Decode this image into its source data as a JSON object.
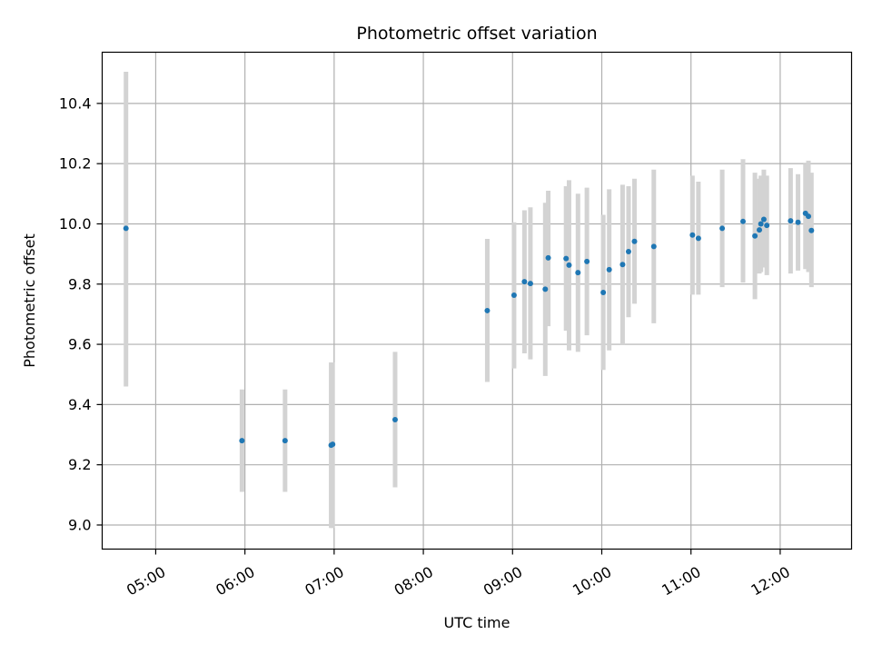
{
  "chart_data": {
    "type": "scatter",
    "title": "Photometric offset variation",
    "xlabel": "UTC time",
    "ylabel": "Photometric offset",
    "x_unit": "UTC time of day (HH:MM)",
    "xlim": [
      "04:24",
      "12:48"
    ],
    "ylim": [
      8.92,
      10.57
    ],
    "x_ticks": [
      "05:00",
      "06:00",
      "07:00",
      "08:00",
      "09:00",
      "10:00",
      "11:00",
      "12:00"
    ],
    "y_ticks": [
      9.0,
      9.2,
      9.4,
      9.6,
      9.8,
      10.0,
      10.2,
      10.4
    ],
    "y_tick_labels": [
      "9.0",
      "9.2",
      "9.4",
      "9.6",
      "9.8",
      "10.0",
      "10.2",
      "10.4"
    ],
    "grid": true,
    "marker_color": "#1f77b4",
    "errorbar_color": "#d3d3d3",
    "points": [
      {
        "x": "04:40",
        "y": 9.985,
        "lo": 9.46,
        "hi": 10.505
      },
      {
        "x": "05:58",
        "y": 9.28,
        "lo": 9.11,
        "hi": 9.45
      },
      {
        "x": "06:27",
        "y": 9.28,
        "lo": 9.11,
        "hi": 9.45
      },
      {
        "x": "06:58",
        "y": 9.265,
        "lo": 8.99,
        "hi": 9.54
      },
      {
        "x": "06:59",
        "y": 9.268,
        "lo": 8.99,
        "hi": 9.54
      },
      {
        "x": "07:41",
        "y": 9.35,
        "lo": 9.125,
        "hi": 9.575
      },
      {
        "x": "08:43",
        "y": 9.712,
        "lo": 9.475,
        "hi": 9.95
      },
      {
        "x": "09:01",
        "y": 9.763,
        "lo": 9.52,
        "hi": 10.005
      },
      {
        "x": "09:08",
        "y": 9.808,
        "lo": 9.57,
        "hi": 10.045
      },
      {
        "x": "09:12",
        "y": 9.802,
        "lo": 9.55,
        "hi": 10.055
      },
      {
        "x": "09:22",
        "y": 9.783,
        "lo": 9.495,
        "hi": 10.07
      },
      {
        "x": "09:24",
        "y": 9.887,
        "lo": 9.66,
        "hi": 10.11
      },
      {
        "x": "09:36",
        "y": 9.885,
        "lo": 9.645,
        "hi": 10.125
      },
      {
        "x": "09:38",
        "y": 9.863,
        "lo": 9.58,
        "hi": 10.145
      },
      {
        "x": "09:44",
        "y": 9.838,
        "lo": 9.575,
        "hi": 10.1
      },
      {
        "x": "09:50",
        "y": 9.875,
        "lo": 9.63,
        "hi": 10.12
      },
      {
        "x": "10:01",
        "y": 9.772,
        "lo": 9.515,
        "hi": 10.03
      },
      {
        "x": "10:05",
        "y": 9.848,
        "lo": 9.58,
        "hi": 10.115
      },
      {
        "x": "10:14",
        "y": 9.865,
        "lo": 9.6,
        "hi": 10.13
      },
      {
        "x": "10:18",
        "y": 9.908,
        "lo": 9.69,
        "hi": 10.125
      },
      {
        "x": "10:22",
        "y": 9.942,
        "lo": 9.735,
        "hi": 10.15
      },
      {
        "x": "10:35",
        "y": 9.925,
        "lo": 9.67,
        "hi": 10.18
      },
      {
        "x": "11:01",
        "y": 9.963,
        "lo": 9.765,
        "hi": 10.16
      },
      {
        "x": "11:05",
        "y": 9.952,
        "lo": 9.765,
        "hi": 10.14
      },
      {
        "x": "11:21",
        "y": 9.985,
        "lo": 9.79,
        "hi": 10.18
      },
      {
        "x": "11:35",
        "y": 10.008,
        "lo": 9.805,
        "hi": 10.215
      },
      {
        "x": "11:43",
        "y": 9.96,
        "lo": 9.75,
        "hi": 10.17
      },
      {
        "x": "11:46",
        "y": 9.98,
        "lo": 9.835,
        "hi": 10.15
      },
      {
        "x": "11:47",
        "y": 10.0,
        "lo": 9.84,
        "hi": 10.16
      },
      {
        "x": "11:49",
        "y": 10.015,
        "lo": 9.855,
        "hi": 10.18
      },
      {
        "x": "11:51",
        "y": 9.995,
        "lo": 9.83,
        "hi": 10.16
      },
      {
        "x": "12:07",
        "y": 10.01,
        "lo": 9.835,
        "hi": 10.185
      },
      {
        "x": "12:12",
        "y": 10.005,
        "lo": 9.845,
        "hi": 10.165
      },
      {
        "x": "12:17",
        "y": 10.035,
        "lo": 9.85,
        "hi": 10.2
      },
      {
        "x": "12:19",
        "y": 10.025,
        "lo": 9.84,
        "hi": 10.21
      },
      {
        "x": "12:21",
        "y": 9.978,
        "lo": 9.79,
        "hi": 10.17
      }
    ]
  }
}
